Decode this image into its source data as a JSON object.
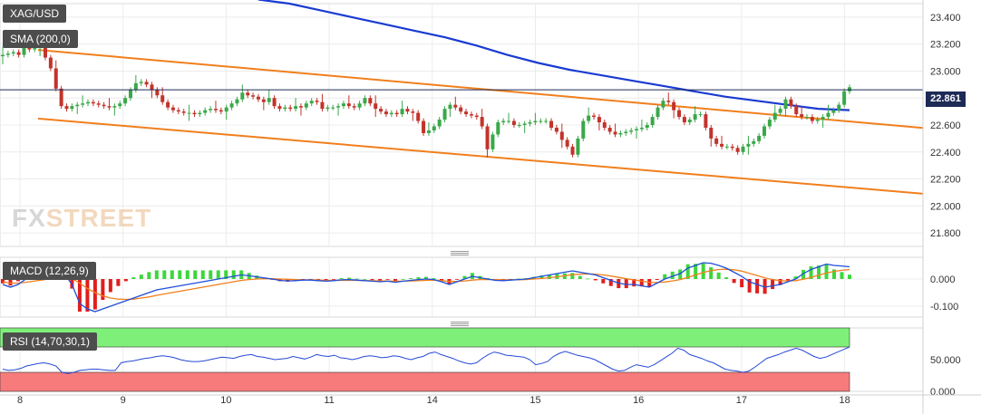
{
  "symbol": "XAG/USD",
  "indicators": {
    "sma_label": "SMA (200,0)",
    "macd_label": "MACD (12,26,9)",
    "rsi_label": "RSI (14,70,30,1)"
  },
  "current_price": "22.861",
  "watermark": {
    "fx": "FX",
    "street": "STREET"
  },
  "colors": {
    "up_candle": "#3aa84a",
    "down_candle": "#c2332b",
    "sma": "#1a3bd1",
    "channel": "#f07f1d",
    "macd_line": "#1f4fd8",
    "signal_line": "#f07f1d",
    "hist_pos": "#3cd63c",
    "hist_neg": "#e21d1d",
    "rsi_line": "#2649d6",
    "rsi_overbought_zone": "#7ef07a",
    "rsi_oversold_zone": "#f77b7b",
    "price_line": "#1e2a56"
  },
  "chart_data": [
    {
      "type": "candlestick",
      "title": "XAG/USD",
      "x_tick_labels": [
        "8",
        "9",
        "10",
        "11",
        "14",
        "15",
        "16",
        "17",
        "18"
      ],
      "y_tick_labels": [
        "23.400",
        "23.200",
        "23.000",
        "22.800",
        "22.600",
        "22.400",
        "22.200",
        "22.000",
        "21.800"
      ],
      "ylim": [
        21.7,
        23.5
      ],
      "grid": true,
      "closes": [
        23.12,
        23.13,
        23.14,
        23.12,
        23.18,
        23.16,
        23.17,
        23.18,
        23.1,
        23.02,
        22.87,
        22.74,
        22.72,
        22.74,
        22.75,
        22.76,
        22.77,
        22.76,
        22.75,
        22.74,
        22.73,
        22.74,
        22.76,
        22.8,
        22.86,
        22.91,
        22.92,
        22.9,
        22.86,
        22.82,
        22.77,
        22.73,
        22.71,
        22.7,
        22.69,
        22.69,
        22.68,
        22.69,
        22.71,
        22.72,
        22.71,
        22.7,
        22.73,
        22.76,
        22.79,
        22.84,
        22.82,
        22.81,
        22.79,
        22.77,
        22.8,
        22.74,
        22.72,
        22.73,
        22.72,
        22.74,
        22.73,
        22.76,
        22.78,
        22.77,
        22.72,
        22.73,
        22.73,
        22.74,
        22.76,
        22.74,
        22.73,
        22.76,
        22.8,
        22.76,
        22.72,
        22.7,
        22.68,
        22.69,
        22.68,
        22.72,
        22.7,
        22.69,
        22.63,
        22.54,
        22.56,
        22.59,
        22.64,
        22.72,
        22.75,
        22.73,
        22.7,
        22.68,
        22.67,
        22.66,
        22.59,
        22.42,
        22.53,
        22.62,
        22.63,
        22.63,
        22.6,
        22.6,
        22.61,
        22.62,
        22.63,
        22.63,
        22.63,
        22.58,
        22.55,
        22.49,
        22.44,
        22.38,
        22.5,
        22.63,
        22.67,
        22.66,
        22.62,
        22.58,
        22.55,
        22.53,
        22.54,
        22.55,
        22.56,
        22.57,
        22.58,
        22.6,
        22.66,
        22.73,
        22.78,
        22.77,
        22.71,
        22.66,
        22.62,
        22.64,
        22.68,
        22.68,
        22.58,
        22.5,
        22.46,
        22.44,
        22.44,
        22.43,
        22.4,
        22.44,
        22.46,
        22.48,
        22.52,
        22.59,
        22.64,
        22.69,
        22.72,
        22.79,
        22.74,
        22.68,
        22.66,
        22.66,
        22.63,
        22.64,
        22.66,
        22.69,
        22.71,
        22.75,
        22.85,
        22.88
      ],
      "opens_note": "open of each candle equals previous close",
      "upper_channel": {
        "start": [
          0,
          23.18
        ],
        "end": [
          155,
          22.64
        ]
      },
      "lower_channel": {
        "start": [
          0,
          22.67
        ],
        "end": [
          155,
          22.15
        ]
      },
      "sma_200": {
        "start_index": 48,
        "values": [
          23.53,
          23.5,
          23.45,
          23.4,
          23.35,
          23.3,
          23.25,
          23.19,
          23.12,
          23.06,
          23.01,
          22.97,
          22.93,
          22.89,
          22.85,
          22.81,
          22.78,
          22.75,
          22.72,
          22.71
        ]
      },
      "last_price": 22.861
    },
    {
      "type": "line",
      "title": "MACD (12,26,9)",
      "y_tick_labels": [
        "0.000",
        "-0.100"
      ],
      "ylim": [
        -0.14,
        0.08
      ],
      "macd": [
        -0.02,
        -0.03,
        -0.02,
        0.0,
        0.01,
        0.02,
        0.03,
        0.03,
        0.02,
        -0.02,
        -0.09,
        -0.11,
        -0.12,
        -0.11,
        -0.1,
        -0.09,
        -0.08,
        -0.07,
        -0.06,
        -0.05,
        -0.04,
        -0.035,
        -0.03,
        -0.025,
        -0.02,
        -0.015,
        -0.01,
        -0.005,
        0.0,
        0.005,
        0.01,
        0.015,
        0.012,
        0.008,
        0.004,
        0.0,
        -0.005,
        -0.007,
        -0.006,
        -0.004,
        -0.004,
        -0.006,
        -0.008,
        -0.006,
        -0.003,
        -0.002,
        -0.004,
        -0.006,
        -0.008,
        -0.01,
        -0.008,
        -0.012,
        -0.008,
        -0.005,
        -0.002,
        0.0,
        -0.002,
        -0.01,
        -0.02,
        -0.01,
        0.0,
        0.01,
        0.005,
        0.0,
        -0.005,
        -0.006,
        -0.004,
        -0.002,
        0.0,
        0.005,
        0.01,
        0.015,
        0.02,
        0.025,
        0.03,
        0.025,
        0.02,
        0.015,
        0.005,
        -0.005,
        -0.015,
        -0.02,
        -0.02,
        -0.025,
        -0.03,
        -0.015,
        0.0,
        0.01,
        0.02,
        0.04,
        0.05,
        0.06,
        0.058,
        0.05,
        0.04,
        0.025,
        0.01,
        -0.01,
        -0.02,
        -0.03,
        -0.025,
        -0.02,
        -0.01,
        0.0,
        0.02,
        0.035,
        0.045,
        0.055,
        0.05,
        0.048,
        0.045
      ],
      "signal": [
        -0.01,
        -0.015,
        -0.015,
        -0.012,
        -0.008,
        -0.004,
        0.0,
        0.004,
        0.006,
        0.002,
        -0.015,
        -0.035,
        -0.05,
        -0.062,
        -0.07,
        -0.074,
        -0.075,
        -0.074,
        -0.07,
        -0.066,
        -0.06,
        -0.055,
        -0.05,
        -0.045,
        -0.04,
        -0.035,
        -0.03,
        -0.025,
        -0.02,
        -0.015,
        -0.01,
        -0.005,
        -0.002,
        0.0,
        0.001,
        0.001,
        0.0,
        -0.001,
        -0.002,
        -0.003,
        -0.003,
        -0.004,
        -0.005,
        -0.005,
        -0.005,
        -0.005,
        -0.005,
        -0.006,
        -0.006,
        -0.007,
        -0.007,
        -0.008,
        -0.008,
        -0.007,
        -0.006,
        -0.005,
        -0.004,
        -0.006,
        -0.009,
        -0.009,
        -0.007,
        -0.004,
        -0.002,
        -0.002,
        -0.002,
        -0.003,
        -0.003,
        -0.003,
        -0.002,
        0.0,
        0.002,
        0.005,
        0.008,
        0.012,
        0.016,
        0.018,
        0.019,
        0.018,
        0.015,
        0.011,
        0.006,
        0.001,
        -0.003,
        -0.008,
        -0.012,
        -0.013,
        -0.011,
        -0.007,
        -0.002,
        0.006,
        0.015,
        0.024,
        0.031,
        0.035,
        0.036,
        0.034,
        0.029,
        0.021,
        0.013,
        0.004,
        -0.002,
        -0.006,
        -0.007,
        -0.006,
        -0.001,
        0.006,
        0.014,
        0.022,
        0.028,
        0.032,
        0.035
      ],
      "histogram_note": "histogram = macd - signal"
    },
    {
      "type": "line",
      "title": "RSI (14,70,30,1)",
      "y_tick_labels": [
        "50.000",
        "0.000"
      ],
      "ylim": [
        0,
        100
      ],
      "overbought": 70,
      "oversold": 30,
      "values": [
        35,
        33,
        34,
        36,
        40,
        42,
        44,
        45,
        43,
        40,
        30,
        28,
        30,
        33,
        34,
        35,
        35,
        34,
        33,
        33,
        45,
        47,
        48,
        50,
        52,
        53,
        55,
        56,
        55,
        53,
        50,
        48,
        47,
        47,
        48,
        50,
        52,
        54,
        53,
        52,
        55,
        57,
        58,
        55,
        54,
        52,
        50,
        51,
        52,
        55,
        53,
        51,
        54,
        58,
        56,
        55,
        57,
        53,
        52,
        50,
        52,
        55,
        56,
        55,
        53,
        54,
        56,
        55,
        52,
        50,
        53,
        55,
        60,
        62,
        58,
        55,
        52,
        48,
        45,
        43,
        45,
        52,
        58,
        62,
        60,
        57,
        56,
        55,
        54,
        50,
        42,
        44,
        47,
        55,
        60,
        63,
        60,
        57,
        55,
        53,
        50,
        45,
        40,
        35,
        32,
        33,
        38,
        42,
        40,
        38,
        42,
        48,
        54,
        60,
        68,
        65,
        58,
        55,
        52,
        48,
        45,
        40,
        35,
        33,
        32,
        30,
        32,
        38,
        45,
        52,
        55,
        58,
        62,
        65,
        68,
        65,
        60,
        55,
        52,
        54,
        58,
        62,
        66,
        70
      ]
    }
  ]
}
